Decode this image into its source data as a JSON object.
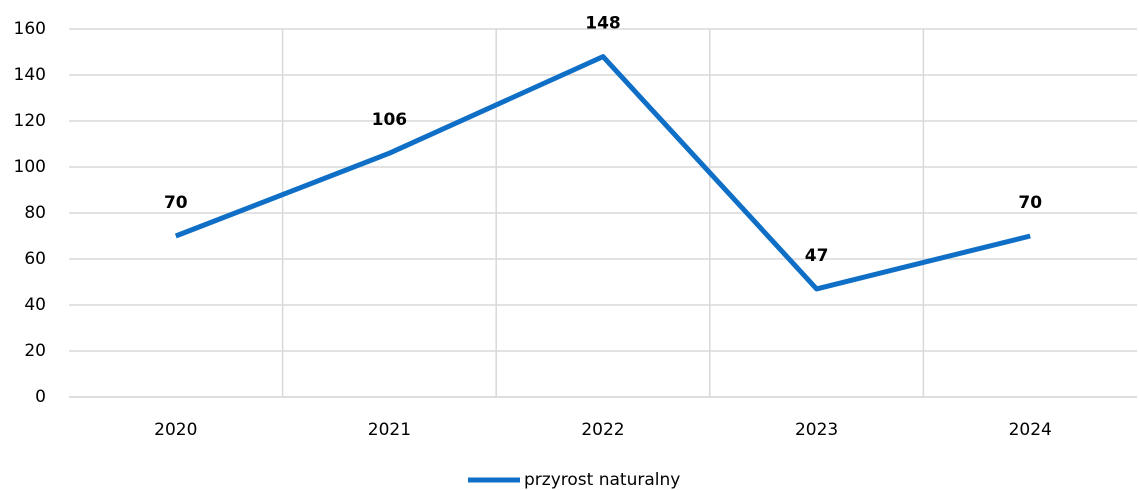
{
  "chart_data": {
    "type": "line",
    "categories": [
      "2020",
      "2021",
      "2022",
      "2023",
      "2024"
    ],
    "series": [
      {
        "name": "przyrost naturalny",
        "color": "#0f6fc6",
        "values": [
          70,
          106,
          148,
          47,
          70
        ]
      }
    ],
    "ylim": [
      0,
      160
    ],
    "yticks": [
      0,
      20,
      40,
      60,
      80,
      100,
      120,
      140,
      160
    ],
    "grid": true,
    "legend": "bottom"
  }
}
